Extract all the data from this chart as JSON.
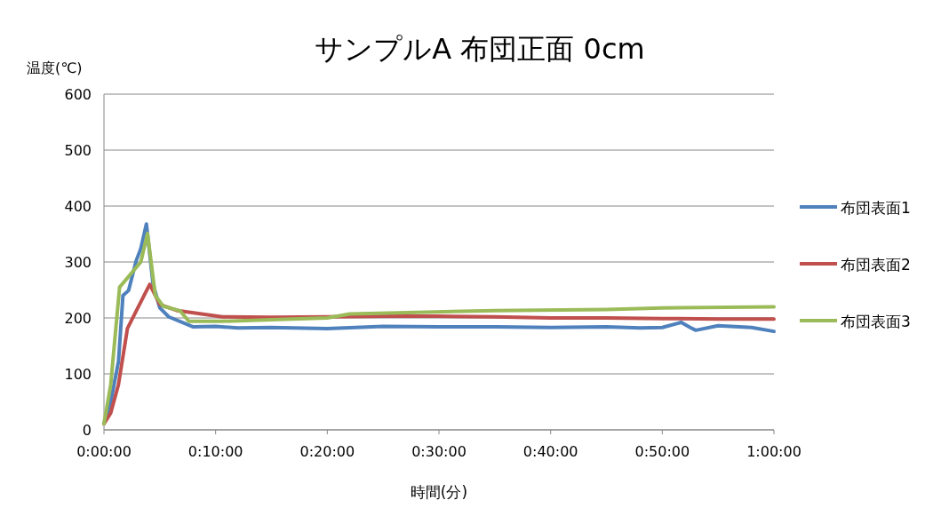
{
  "chart_data": {
    "type": "line",
    "title": "サンプルA 布団正面 0cm",
    "xlabel": "時間(分)",
    "ylabel": "温度(℃)",
    "xlim": [
      0,
      60
    ],
    "xticks": [
      {
        "value": 0,
        "label": "0:00:00"
      },
      {
        "value": 10,
        "label": "0:10:00"
      },
      {
        "value": 20,
        "label": "0:20:00"
      },
      {
        "value": 30,
        "label": "0:30:00"
      },
      {
        "value": 40,
        "label": "0:40:00"
      },
      {
        "value": 50,
        "label": "0:50:00"
      },
      {
        "value": 60,
        "label": "1:00:00"
      }
    ],
    "ylim": [
      0,
      600
    ],
    "yticks": [
      0,
      100,
      200,
      300,
      400,
      500,
      600
    ],
    "grid": "y",
    "legend": "right",
    "marker": "none",
    "line_style": "solid",
    "series": [
      {
        "name": "布団表面1",
        "color": "#4f81bd",
        "x": [
          0,
          0.6,
          1.3,
          1.7,
          2.2,
          2.9,
          3.3,
          3.8,
          4.4,
          5.0,
          5.8,
          8.0,
          10,
          12,
          15,
          20,
          25,
          30,
          35,
          40,
          45,
          48,
          50,
          51.7,
          52.5,
          53,
          55,
          58,
          60
        ],
        "values": [
          11,
          50,
          122,
          240,
          249,
          303,
          324,
          368,
          260,
          218,
          202,
          184,
          185,
          182,
          183,
          181,
          185,
          184,
          184,
          183,
          184,
          182,
          183,
          192,
          183,
          178,
          186,
          183,
          176
        ]
      },
      {
        "name": "布団表面2",
        "color": "#c0504d",
        "x": [
          0,
          0.6,
          1.3,
          2.1,
          2.9,
          4.1,
          5.0,
          6.6,
          10.6,
          15,
          20,
          25,
          30,
          35,
          40,
          45,
          50,
          55,
          60
        ],
        "values": [
          11,
          30,
          81,
          181,
          213,
          260,
          224,
          213,
          202,
          201,
          202,
          203,
          203,
          202,
          200,
          200,
          199,
          198,
          198
        ]
      },
      {
        "name": "布団表面3",
        "color": "#9bbb59",
        "x": [
          0,
          0.6,
          1.4,
          3.3,
          3.9,
          4.6,
          5.3,
          6.8,
          7.6,
          10.6,
          15,
          20,
          22,
          28,
          35,
          45,
          50,
          60
        ],
        "values": [
          11,
          80,
          255,
          300,
          351,
          240,
          221,
          213,
          194,
          194,
          197,
          200,
          207,
          210,
          213,
          215,
          218,
          220
        ]
      }
    ]
  }
}
